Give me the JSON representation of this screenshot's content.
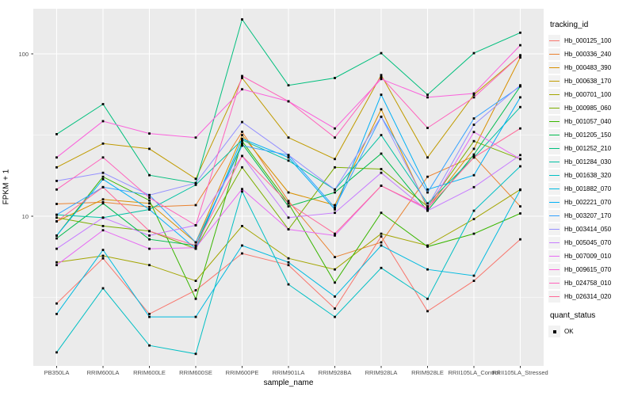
{
  "figure": {
    "xlabel": "sample_name",
    "ylabel": "FPKM + 1"
  },
  "colors": {
    "panel_bg": "#EBEBEB",
    "grid": "#FFFFFF",
    "tick_text": "#4D4D4D",
    "axis_text": "#000000",
    "point": "#000000",
    "legend_key_bg": "#F2F2F2"
  },
  "legend": {
    "color_title": "tracking_id",
    "shape_title": "quant_status",
    "shape_items": [
      "OK"
    ]
  },
  "chart_data": {
    "type": "line",
    "title": "",
    "xlabel": "sample_name",
    "ylabel": "FPKM + 1",
    "yscale": "log10",
    "ylim": [
      1.2,
      190
    ],
    "y_major_ticks": [
      10,
      100
    ],
    "y_minor_ticks": [
      3.162,
      31.62
    ],
    "grid": "white major+minor on gray panel",
    "legend_position": "right",
    "point_shape": "small black square (quant_status = OK)",
    "categories": [
      "PB350LA",
      "RRIM600LA",
      "RRIM600LE",
      "RRIM600SE",
      "RRIM600PE",
      "RRIM901LA",
      "RRIM928BA",
      "RRIM928LA",
      "RRIM928LE",
      "RRII105LA_Control",
      "RRII105LA_Stressed"
    ],
    "series": [
      {
        "name": "Hb_000125_100",
        "color": "#F8766D",
        "values": [
          2.9,
          5.5,
          2.5,
          3.5,
          5.9,
          5.0,
          2.7,
          7.5,
          2.6,
          4.0,
          7.2
        ]
      },
      {
        "name": "Hb_000336_240",
        "color": "#EA8331",
        "values": [
          11.9,
          12.2,
          11.4,
          11.7,
          33.1,
          12.4,
          5.6,
          6.9,
          17.5,
          23.4,
          11.5
        ]
      },
      {
        "name": "Hb_000483_390",
        "color": "#D89000",
        "values": [
          9.3,
          12.7,
          12.0,
          6.9,
          31.6,
          14.0,
          11.7,
          45.5,
          11.2,
          26.0,
          95.0
        ]
      },
      {
        "name": "Hb_000638_170",
        "color": "#C09B00",
        "values": [
          20.0,
          28.0,
          26.0,
          17.0,
          71.0,
          30.5,
          22.5,
          74.0,
          23.0,
          56.0,
          98.0
        ]
      },
      {
        "name": "Hb_000701_100",
        "color": "#A3A500",
        "values": [
          5.2,
          5.7,
          5.0,
          4.0,
          8.7,
          5.5,
          4.7,
          7.8,
          6.6,
          9.6,
          14.6
        ]
      },
      {
        "name": "Hb_000985_060",
        "color": "#7CAE00",
        "values": [
          9.8,
          8.7,
          8.1,
          6.3,
          20.0,
          8.3,
          20.0,
          19.5,
          11.5,
          29.0,
          22.5
        ]
      },
      {
        "name": "Hb_001057_040",
        "color": "#39B600",
        "values": [
          7.6,
          17.5,
          12.5,
          3.1,
          29.0,
          12.0,
          3.9,
          10.5,
          6.5,
          7.8,
          10.4
        ]
      },
      {
        "name": "Hb_001205_150",
        "color": "#00BB4E",
        "values": [
          7.3,
          12.0,
          7.2,
          6.6,
          28.0,
          11.5,
          14.0,
          24.3,
          10.8,
          24.0,
          63.0
        ]
      },
      {
        "name": "Hb_001252_210",
        "color": "#00BF7D",
        "values": [
          32.0,
          49.0,
          17.9,
          16.0,
          163.0,
          64.0,
          71.0,
          101.0,
          56.0,
          101.0,
          135.0
        ]
      },
      {
        "name": "Hb_001284_030",
        "color": "#00C1A3",
        "values": [
          10.2,
          9.8,
          11.0,
          15.6,
          29.5,
          22.0,
          14.6,
          31.6,
          12.0,
          23.0,
          47.0
        ]
      },
      {
        "name": "Hb_001638_320",
        "color": "#00BFC4",
        "values": [
          1.45,
          3.6,
          1.6,
          1.42,
          14.2,
          3.8,
          2.4,
          4.8,
          3.1,
          10.8,
          20.3
        ]
      },
      {
        "name": "Hb_001882_070",
        "color": "#00BAE0",
        "values": [
          2.5,
          6.2,
          2.4,
          2.4,
          6.6,
          5.2,
          3.2,
          6.6,
          4.7,
          4.3,
          14.5
        ]
      },
      {
        "name": "Hb_002221_070",
        "color": "#00B0F6",
        "values": [
          7.6,
          16.9,
          11.0,
          6.3,
          30.0,
          23.0,
          11.0,
          56.0,
          14.6,
          17.9,
          54.0
        ]
      },
      {
        "name": "Hb_003207_170",
        "color": "#35A2FF",
        "values": [
          10.2,
          15.1,
          13.5,
          6.9,
          27.2,
          23.8,
          11.3,
          41.0,
          14.0,
          40.0,
          63.0
        ]
      },
      {
        "name": "Hb_003414_050",
        "color": "#9590FF",
        "values": [
          16.5,
          18.5,
          13.5,
          16.0,
          38.0,
          23.8,
          14.6,
          41.0,
          11.5,
          36.6,
          64.0
        ]
      },
      {
        "name": "Hb_005045_070",
        "color": "#C77CFF",
        "values": [
          6.3,
          9.8,
          7.6,
          8.8,
          23.5,
          9.8,
          10.5,
          18.5,
          10.8,
          15.1,
          23.8
        ]
      },
      {
        "name": "Hb_007009_010",
        "color": "#E76BF3",
        "values": [
          5.0,
          8.2,
          6.3,
          6.4,
          14.7,
          8.3,
          7.6,
          15.4,
          11.0,
          33.0,
          22.5
        ]
      },
      {
        "name": "Hb_009615_070",
        "color": "#FA62DB",
        "values": [
          23.0,
          38.5,
          32.3,
          30.5,
          60.5,
          51.0,
          34.7,
          70.0,
          54.0,
          57.0,
          113.0
        ]
      },
      {
        "name": "Hb_024758_010",
        "color": "#FF62BC",
        "values": [
          14.6,
          23.0,
          13.0,
          8.8,
          73.0,
          51.0,
          30.5,
          72.0,
          35.0,
          54.0,
          98.0
        ]
      },
      {
        "name": "Hb_026314_020",
        "color": "#FF6A98",
        "values": [
          9.3,
          15.1,
          8.1,
          6.6,
          23.5,
          12.0,
          7.8,
          15.4,
          11.2,
          23.0,
          34.7
        ]
      }
    ]
  }
}
